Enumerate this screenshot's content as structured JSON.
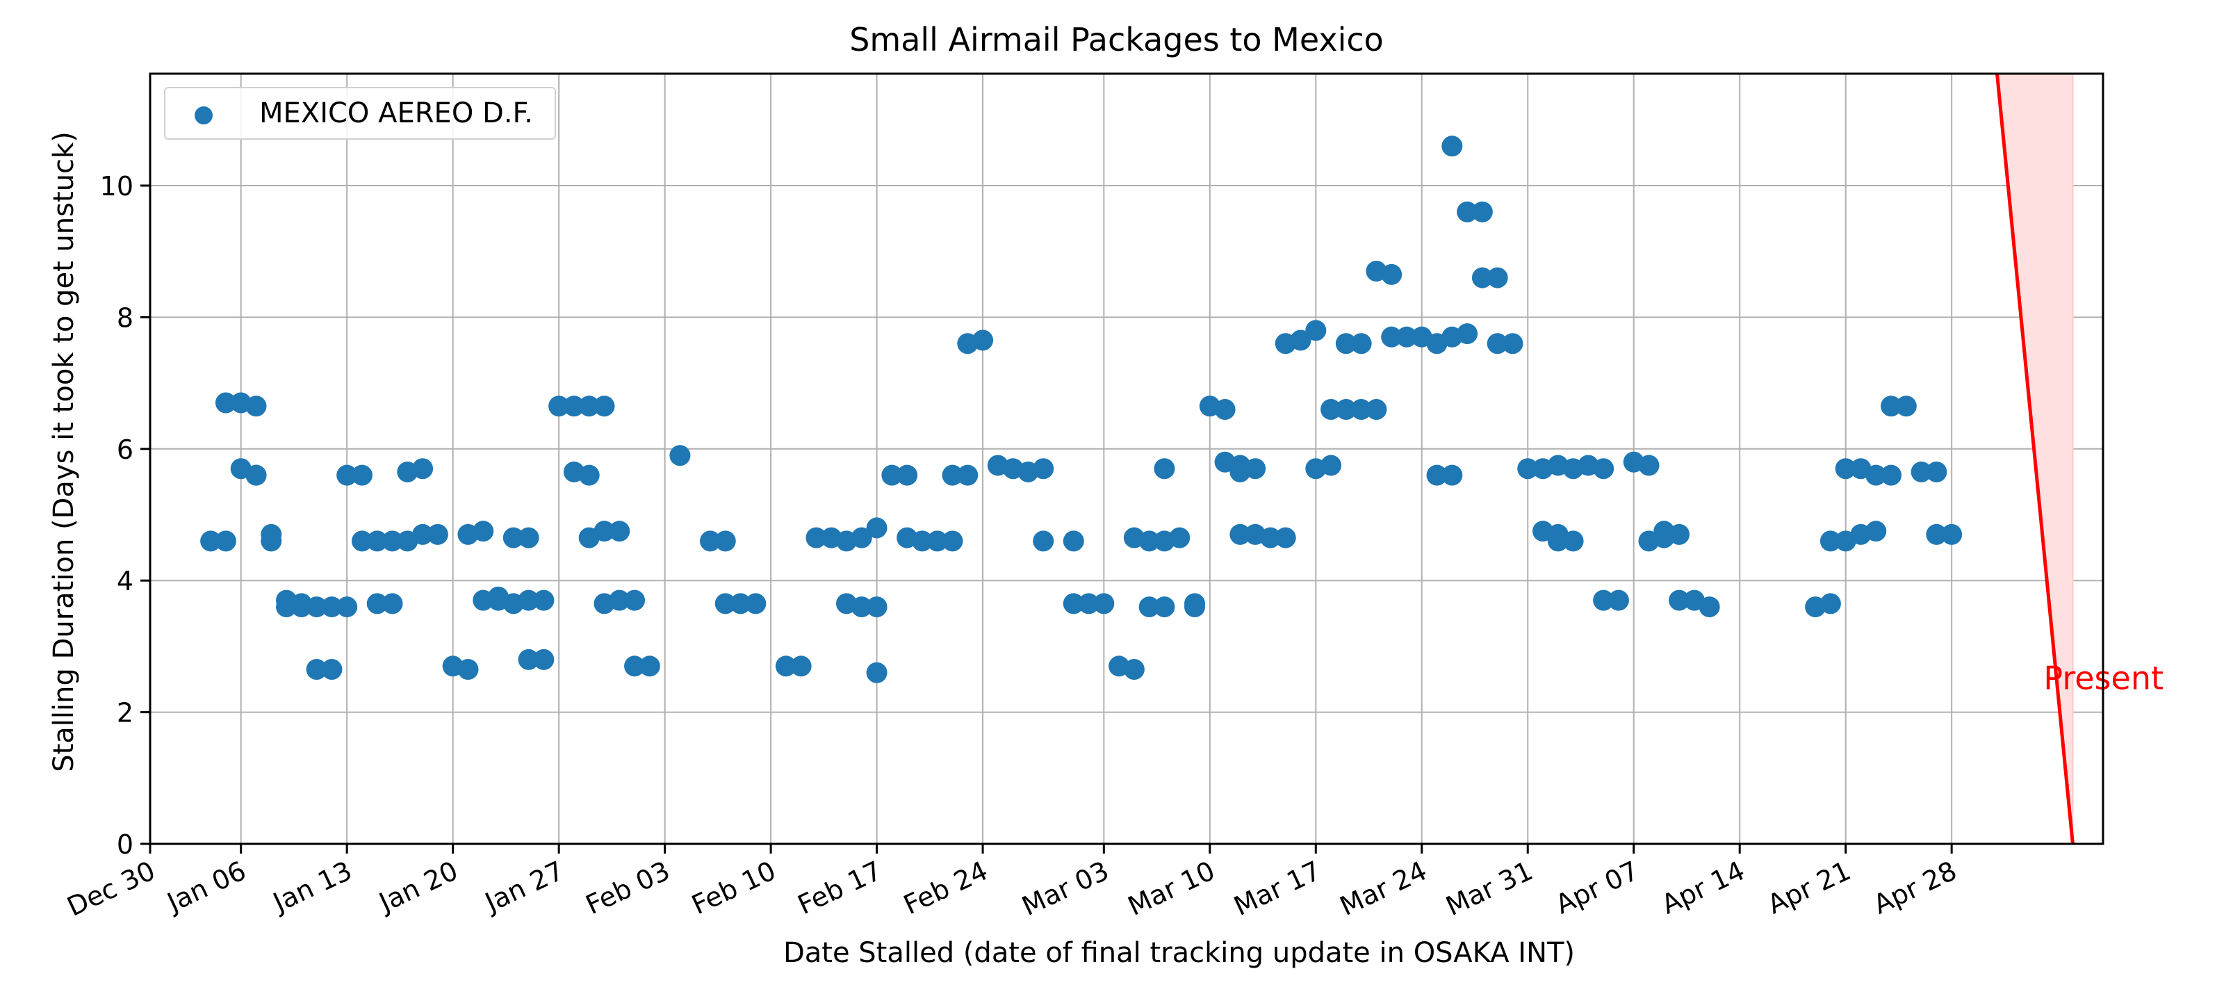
{
  "chart_data": {
    "type": "scatter",
    "title": "Small Airmail Packages to Mexico",
    "xlabel": "Date Stalled (date of final tracking update in OSAKA INT)",
    "ylabel": "Stalling Duration (Days it took to get unstuck)",
    "x_ticks": [
      "Dec 30",
      "Jan 06",
      "Jan 13",
      "Jan 20",
      "Jan 27",
      "Feb 03",
      "Feb 10",
      "Feb 17",
      "Feb 24",
      "Mar 03",
      "Mar 10",
      "Mar 17",
      "Mar 24",
      "Mar 31",
      "Apr 07",
      "Apr 14",
      "Apr 21",
      "Apr 28"
    ],
    "y_ticks": [
      "0",
      "2",
      "4",
      "6",
      "8",
      "10"
    ],
    "xlim": [
      "Dec 30",
      "May 08"
    ],
    "ylim": [
      0,
      11.7
    ],
    "grid": true,
    "legend_position": "upper-left",
    "series": [
      {
        "name": "MEXICO AEREO D.F.",
        "color": "#1f77b4",
        "points": [
          [
            "Jan 04",
            4.6
          ],
          [
            "Jan 05",
            4.6
          ],
          [
            "Jan 05",
            6.7
          ],
          [
            "Jan 06",
            6.7
          ],
          [
            "Jan 06",
            5.7
          ],
          [
            "Jan 07",
            5.6
          ],
          [
            "Jan 07",
            6.65
          ],
          [
            "Jan 07",
            5.6
          ],
          [
            "Jan 08",
            4.6
          ],
          [
            "Jan 08",
            4.7
          ],
          [
            "Jan 09",
            3.7
          ],
          [
            "Jan 09",
            3.6
          ],
          [
            "Jan 10",
            3.6
          ],
          [
            "Jan 10",
            3.65
          ],
          [
            "Jan 11",
            3.6
          ],
          [
            "Jan 11",
            2.65
          ],
          [
            "Jan 12",
            2.65
          ],
          [
            "Jan 12",
            3.6
          ],
          [
            "Jan 13",
            3.6
          ],
          [
            "Jan 13",
            5.6
          ],
          [
            "Jan 14",
            5.6
          ],
          [
            "Jan 14",
            4.6
          ],
          [
            "Jan 15",
            4.6
          ],
          [
            "Jan 15",
            3.65
          ],
          [
            "Jan 16",
            3.65
          ],
          [
            "Jan 16",
            4.6
          ],
          [
            "Jan 17",
            4.6
          ],
          [
            "Jan 17",
            5.65
          ],
          [
            "Jan 18",
            5.7
          ],
          [
            "Jan 18",
            4.7
          ],
          [
            "Jan 19",
            4.7
          ],
          [
            "Jan 20",
            2.7
          ],
          [
            "Jan 21",
            2.65
          ],
          [
            "Jan 21",
            4.7
          ],
          [
            "Jan 22",
            4.75
          ],
          [
            "Jan 22",
            3.7
          ],
          [
            "Jan 23",
            3.7
          ],
          [
            "Jan 23",
            3.75
          ],
          [
            "Jan 24",
            3.65
          ],
          [
            "Jan 24",
            4.65
          ],
          [
            "Jan 25",
            4.65
          ],
          [
            "Jan 25",
            3.7
          ],
          [
            "Jan 26",
            3.7
          ],
          [
            "Jan 25",
            2.8
          ],
          [
            "Jan 26",
            2.8
          ],
          [
            "Jan 27",
            6.65
          ],
          [
            "Jan 28",
            6.65
          ],
          [
            "Jan 28",
            5.65
          ],
          [
            "Jan 29",
            5.6
          ],
          [
            "Jan 29",
            4.65
          ],
          [
            "Jan 30",
            4.75
          ],
          [
            "Jan 29",
            6.65
          ],
          [
            "Jan 30",
            6.65
          ],
          [
            "Jan 30",
            3.65
          ],
          [
            "Jan 31",
            3.7
          ],
          [
            "Jan 31",
            4.75
          ],
          [
            "Feb 01",
            3.7
          ],
          [
            "Feb 01",
            2.7
          ],
          [
            "Feb 02",
            2.7
          ],
          [
            "Feb 04",
            5.9
          ],
          [
            "Feb 06",
            4.6
          ],
          [
            "Feb 07",
            4.6
          ],
          [
            "Feb 07",
            3.65
          ],
          [
            "Feb 08",
            3.65
          ],
          [
            "Feb 09",
            3.65
          ],
          [
            "Feb 11",
            2.7
          ],
          [
            "Feb 12",
            2.7
          ],
          [
            "Feb 13",
            4.65
          ],
          [
            "Feb 14",
            4.65
          ],
          [
            "Feb 15",
            4.6
          ],
          [
            "Feb 15",
            3.65
          ],
          [
            "Feb 16",
            3.6
          ],
          [
            "Feb 16",
            4.65
          ],
          [
            "Feb 17",
            4.8
          ],
          [
            "Feb 17",
            3.6
          ],
          [
            "Feb 17",
            2.6
          ],
          [
            "Feb 18",
            5.6
          ],
          [
            "Feb 19",
            5.6
          ],
          [
            "Feb 19",
            4.65
          ],
          [
            "Feb 20",
            4.6
          ],
          [
            "Feb 21",
            4.6
          ],
          [
            "Feb 22",
            4.6
          ],
          [
            "Feb 22",
            5.6
          ],
          [
            "Feb 23",
            5.6
          ],
          [
            "Feb 23",
            7.6
          ],
          [
            "Feb 24",
            7.65
          ],
          [
            "Feb 25",
            5.75
          ],
          [
            "Feb 26",
            5.7
          ],
          [
            "Feb 27",
            5.65
          ],
          [
            "Feb 28",
            5.7
          ],
          [
            "Feb 28",
            4.6
          ],
          [
            "Mar 01",
            4.6
          ],
          [
            "Mar 01",
            3.65
          ],
          [
            "Mar 02",
            3.65
          ],
          [
            "Mar 03",
            3.65
          ],
          [
            "Mar 04",
            2.7
          ],
          [
            "Mar 05",
            2.65
          ],
          [
            "Mar 05",
            4.65
          ],
          [
            "Mar 06",
            4.6
          ],
          [
            "Mar 06",
            3.6
          ],
          [
            "Mar 07",
            3.6
          ],
          [
            "Mar 07",
            5.7
          ],
          [
            "Mar 07",
            4.6
          ],
          [
            "Mar 08",
            4.65
          ],
          [
            "Mar 09",
            3.65
          ],
          [
            "Mar 09",
            3.6
          ],
          [
            "Mar 10",
            6.65
          ],
          [
            "Mar 11",
            6.6
          ],
          [
            "Mar 11",
            5.8
          ],
          [
            "Mar 12",
            5.75
          ],
          [
            "Mar 12",
            5.65
          ],
          [
            "Mar 12",
            4.7
          ],
          [
            "Mar 13",
            4.7
          ],
          [
            "Mar 13",
            5.7
          ],
          [
            "Mar 14",
            4.65
          ],
          [
            "Mar 15",
            4.65
          ],
          [
            "Mar 15",
            7.6
          ],
          [
            "Mar 16",
            7.65
          ],
          [
            "Mar 17",
            7.8
          ],
          [
            "Mar 17",
            5.7
          ],
          [
            "Mar 18",
            5.75
          ],
          [
            "Mar 18",
            6.6
          ],
          [
            "Mar 19",
            6.6
          ],
          [
            "Mar 19",
            7.6
          ],
          [
            "Mar 20",
            7.6
          ],
          [
            "Mar 20",
            6.6
          ],
          [
            "Mar 21",
            6.6
          ],
          [
            "Mar 21",
            8.7
          ],
          [
            "Mar 22",
            8.65
          ],
          [
            "Mar 22",
            7.7
          ],
          [
            "Mar 23",
            7.7
          ],
          [
            "Mar 24",
            7.7
          ],
          [
            "Mar 25",
            7.6
          ],
          [
            "Mar 25",
            5.6
          ],
          [
            "Mar 26",
            5.6
          ],
          [
            "Mar 26",
            7.7
          ],
          [
            "Mar 26",
            10.6
          ],
          [
            "Mar 27",
            9.6
          ],
          [
            "Mar 28",
            9.6
          ],
          [
            "Mar 27",
            7.75
          ],
          [
            "Mar 28",
            8.6
          ],
          [
            "Mar 29",
            8.6
          ],
          [
            "Mar 29",
            7.6
          ],
          [
            "Mar 30",
            7.6
          ],
          [
            "Mar 31",
            5.7
          ],
          [
            "Apr 01",
            5.7
          ],
          [
            "Apr 01",
            4.75
          ],
          [
            "Apr 02",
            4.7
          ],
          [
            "Apr 02",
            4.6
          ],
          [
            "Apr 03",
            4.6
          ],
          [
            "Apr 02",
            5.75
          ],
          [
            "Apr 03",
            5.7
          ],
          [
            "Apr 04",
            5.75
          ],
          [
            "Apr 05",
            5.7
          ],
          [
            "Apr 05",
            3.7
          ],
          [
            "Apr 06",
            3.7
          ],
          [
            "Apr 07",
            5.8
          ],
          [
            "Apr 08",
            5.75
          ],
          [
            "Apr 08",
            4.6
          ],
          [
            "Apr 09",
            4.65
          ],
          [
            "Apr 09",
            4.75
          ],
          [
            "Apr 10",
            4.7
          ],
          [
            "Apr 10",
            3.7
          ],
          [
            "Apr 11",
            3.7
          ],
          [
            "Apr 12",
            3.6
          ],
          [
            "Apr 19",
            3.6
          ],
          [
            "Apr 20",
            3.65
          ],
          [
            "Apr 20",
            4.6
          ],
          [
            "Apr 21",
            4.6
          ],
          [
            "Apr 21",
            5.7
          ],
          [
            "Apr 22",
            5.7
          ],
          [
            "Apr 22",
            4.7
          ],
          [
            "Apr 23",
            4.75
          ],
          [
            "Apr 23",
            5.6
          ],
          [
            "Apr 24",
            5.6
          ],
          [
            "Apr 24",
            6.65
          ],
          [
            "Apr 25",
            6.65
          ],
          [
            "Apr 26",
            5.65
          ],
          [
            "Apr 27",
            5.65
          ],
          [
            "Apr 27",
            4.7
          ],
          [
            "Apr 28",
            4.7
          ]
        ]
      }
    ],
    "annotation": {
      "text": "Present",
      "color": "#ff0000",
      "line_top_date": "May 01",
      "line_bottom_date": "May 06",
      "shade_color": "#ffe0e0"
    }
  }
}
